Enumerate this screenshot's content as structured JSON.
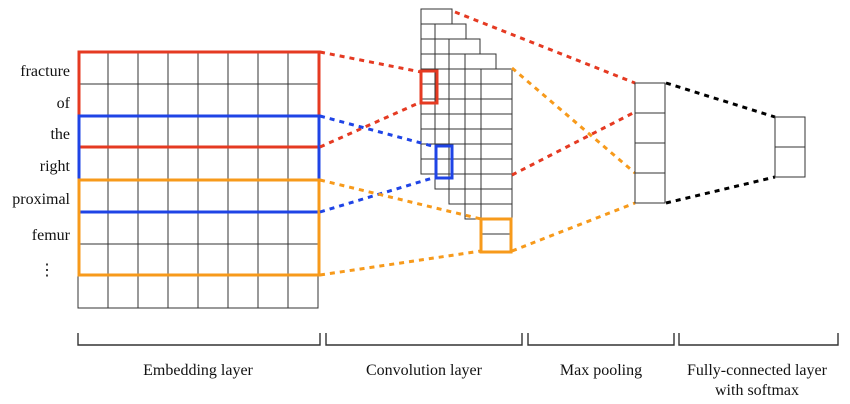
{
  "words": [
    "fracture",
    "of",
    "the",
    "right",
    "proximal",
    "femur",
    "⋮"
  ],
  "stages": [
    {
      "lines": [
        "Embedding layer"
      ]
    },
    {
      "lines": [
        "Convolution layer"
      ]
    },
    {
      "lines": [
        "Max pooling"
      ]
    },
    {
      "lines": [
        "Fully-connected layer",
        "with softmax"
      ]
    }
  ],
  "colors": {
    "red": "#e53a22",
    "blue": "#1f44e6",
    "orange": "#f79a1b",
    "black": "#000000"
  }
}
